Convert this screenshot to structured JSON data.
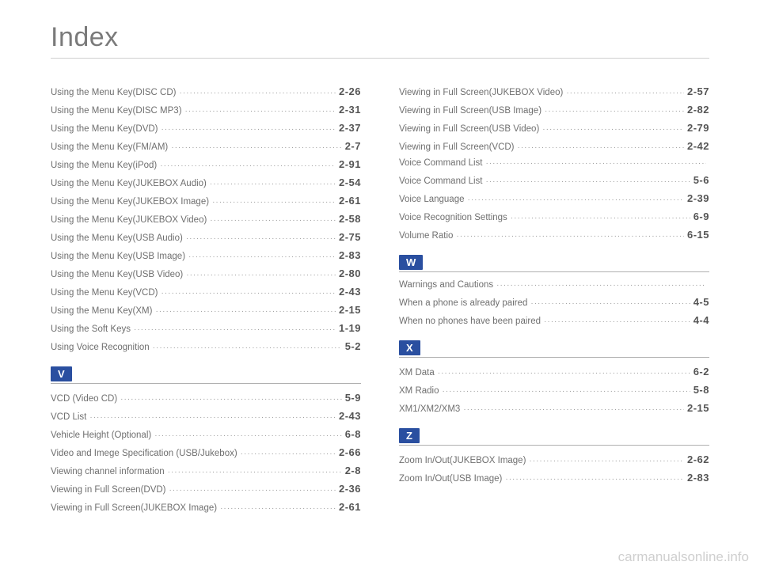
{
  "title": "Index",
  "columns": [
    {
      "groups": [
        {
          "letter": null,
          "entries": [
            {
              "label": "Using the Menu Key(DISC CD)",
              "page": "2-26"
            },
            {
              "label": "Using the Menu Key(DISC MP3)",
              "page": "2-31"
            },
            {
              "label": "Using the Menu Key(DVD)",
              "page": "2-37"
            },
            {
              "label": "Using the Menu Key(FM/AM)",
              "page": "2-7"
            },
            {
              "label": "Using the Menu Key(iPod)",
              "page": "2-91"
            },
            {
              "label": "Using the Menu Key(JUKEBOX Audio)",
              "page": "2-54"
            },
            {
              "label": "Using the Menu Key(JUKEBOX Image)",
              "page": "2-61"
            },
            {
              "label": "Using the Menu Key(JUKEBOX Video)",
              "page": "2-58"
            },
            {
              "label": "Using the Menu Key(USB Audio)",
              "page": "2-75"
            },
            {
              "label": "Using the Menu Key(USB Image)",
              "page": "2-83"
            },
            {
              "label": "Using the Menu Key(USB Video)",
              "page": "2-80"
            },
            {
              "label": "Using the Menu Key(VCD)",
              "page": "2-43"
            },
            {
              "label": "Using the Menu Key(XM)",
              "page": "2-15"
            },
            {
              "label": "Using the Soft Keys",
              "page": "1-19"
            },
            {
              "label": "Using Voice Recognition",
              "page": "5-2"
            }
          ]
        },
        {
          "letter": "V",
          "entries": [
            {
              "label": "VCD (Video CD)",
              "page": "5-9"
            },
            {
              "label": "VCD List",
              "page": "2-43"
            },
            {
              "label": "Vehicle Height (Optional)",
              "page": "6-8"
            },
            {
              "label": "Video and Imege Specification (USB/Jukebox)",
              "page": "2-66"
            },
            {
              "label": "Viewing channel information",
              "page": "2-8"
            },
            {
              "label": "Viewing in Full Screen(DVD)",
              "page": "2-36"
            },
            {
              "label": "Viewing in Full Screen(JUKEBOX Image)",
              "page": "2-61"
            }
          ]
        }
      ]
    },
    {
      "groups": [
        {
          "letter": null,
          "entries": [
            {
              "label": "Viewing in Full Screen(JUKEBOX Video)",
              "page": "2-57"
            },
            {
              "label": "Viewing in Full Screen(USB Image)",
              "page": "2-82"
            },
            {
              "label": "Viewing in Full Screen(USB Video)",
              "page": "2-79"
            },
            {
              "label": "Viewing in Full Screen(VCD)",
              "page": "2-42"
            },
            {
              "label": "Voice Command List",
              "page": ""
            },
            {
              "label": "Voice Command List ",
              "page": "5-6"
            },
            {
              "label": "Voice Language",
              "page": "2-39"
            },
            {
              "label": "Voice Recognition Settings",
              "page": "6-9"
            },
            {
              "label": "Volume Ratio",
              "page": "6-15"
            }
          ]
        },
        {
          "letter": "W",
          "entries": [
            {
              "label": "Warnings and Cautions",
              "page": ""
            },
            {
              "label": "When a phone is already paired",
              "page": "4-5"
            },
            {
              "label": "When no phones have been paired",
              "page": "4-4"
            }
          ]
        },
        {
          "letter": "X",
          "entries": [
            {
              "label": "XM Data",
              "page": "6-2"
            },
            {
              "label": "XM Radio",
              "page": "5-8"
            },
            {
              "label": "XM1/XM2/XM3",
              "page": "2-15"
            }
          ]
        },
        {
          "letter": "Z",
          "entries": [
            {
              "label": "Zoom In/Out(JUKEBOX Image)",
              "page": "2-62"
            },
            {
              "label": "Zoom In/Out(USB Image)",
              "page": "2-83"
            }
          ]
        }
      ]
    }
  ],
  "watermark": "carmanualsonline.info",
  "style": {
    "accent": "#2a4fa0",
    "text": "#6f6f6f",
    "page_text": "#555",
    "rule": "#cfcfcf",
    "bg": "#ffffff"
  }
}
